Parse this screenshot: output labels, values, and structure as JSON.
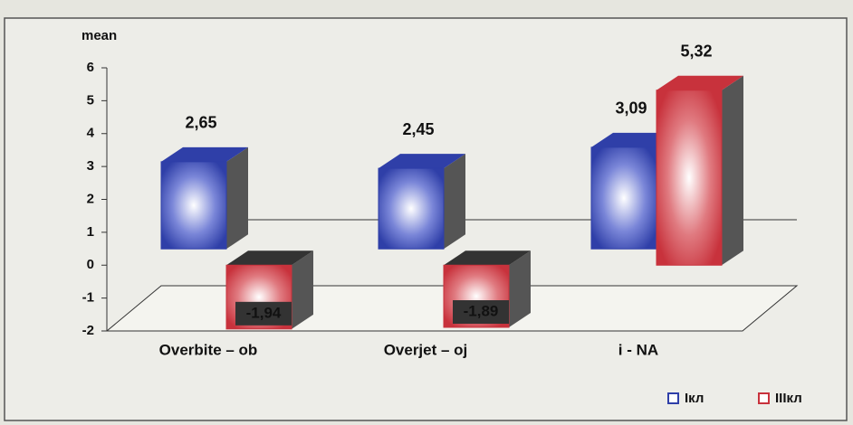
{
  "chart_data": {
    "type": "bar3d",
    "y_label": "mean",
    "categories": [
      "Overbite – ob",
      "Overjet – oj",
      "i - NA"
    ],
    "series": [
      {
        "name": "Iкл",
        "color": "#2f3fa8",
        "values": [
          2.65,
          2.45,
          3.09
        ],
        "value_labels": [
          "2,65",
          "2,45",
          "3,09"
        ]
      },
      {
        "name": "IIIкл",
        "color": "#c8323c",
        "values": [
          -1.94,
          -1.89,
          5.32
        ],
        "value_labels": [
          "-1,94",
          "-1,89",
          "5,32"
        ]
      }
    ],
    "ylim": [
      -2,
      6
    ],
    "yticks": [
      -2,
      -1,
      0,
      1,
      2,
      3,
      4,
      5,
      6
    ]
  }
}
